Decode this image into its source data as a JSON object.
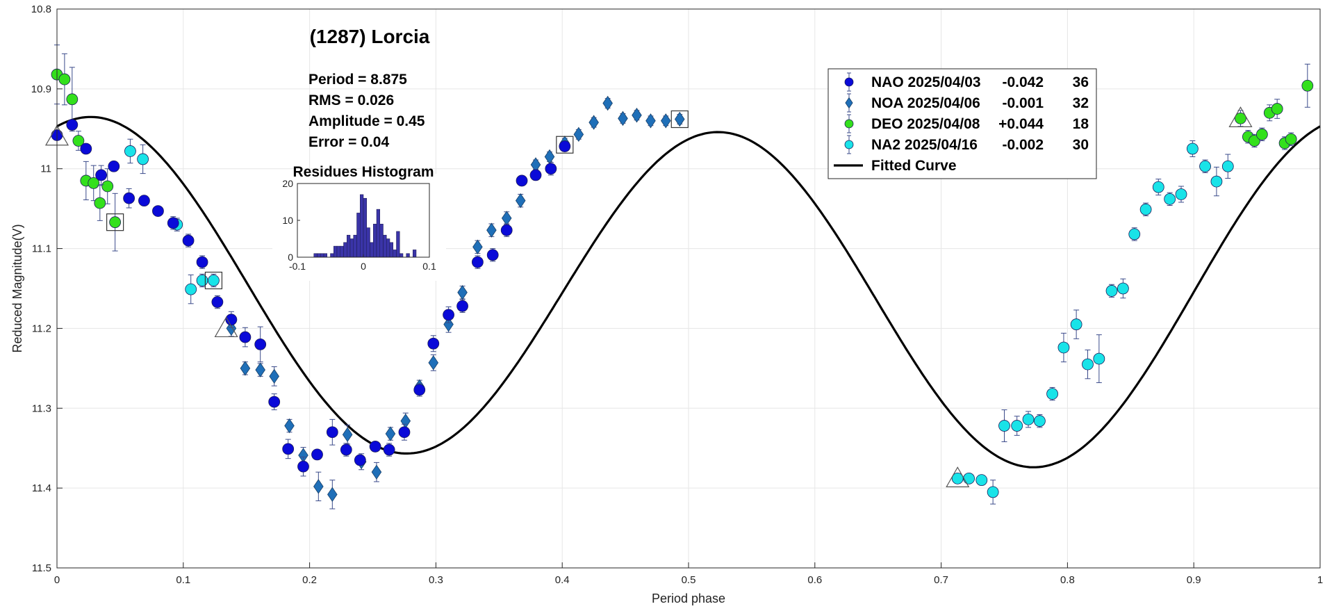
{
  "chart_data": {
    "type": "scatter",
    "title": "(1287) Lorcia",
    "xlabel": "Period phase",
    "ylabel": "Reduced Magnitude(V)",
    "xlim": [
      0,
      1
    ],
    "ylim": [
      10.8,
      11.5
    ],
    "y_inverted": true,
    "grid": true,
    "x_ticks": [
      "0",
      "0.1",
      "0.2",
      "0.3",
      "0.4",
      "0.5",
      "0.6",
      "0.7",
      "0.8",
      "0.9",
      "1"
    ],
    "y_ticks": [
      "10.8",
      "10.9",
      "11",
      "11.1",
      "11.2",
      "11.3",
      "11.4",
      "11.5"
    ],
    "stats": {
      "period": "Period =  8.875",
      "rms": "RMS = 0.026",
      "amplitude": "Amplitude = 0.45",
      "error": "Error = 0.04"
    },
    "legend": {
      "position": "top-right",
      "entries": [
        {
          "name": "NAO 2025/04/03",
          "offset": "-0.042",
          "count": "36",
          "marker": "circle",
          "color": "#0a0ad8"
        },
        {
          "name": "NOA 2025/04/06",
          "offset": "-0.001",
          "count": "32",
          "marker": "diamond",
          "color": "#1f6fb8"
        },
        {
          "name": "DEO 2025/04/08",
          "offset": "+0.044",
          "count": "18",
          "marker": "circle",
          "color": "#33e01c"
        },
        {
          "name": "NA2 2025/04/16",
          "offset": "-0.002",
          "count": "30",
          "marker": "circle",
          "color": "#19e3e8"
        },
        {
          "name": "Fitted Curve",
          "marker": "line",
          "color": "#000000"
        }
      ]
    },
    "fit": {
      "mean": 11.155,
      "c1": -0.008,
      "s1": -0.01,
      "c2": -0.2,
      "s2": -0.065
    },
    "series": [
      {
        "name": "NAO 2025/04/03",
        "marker": "circle",
        "color": "#0a0ad8",
        "points": [
          [
            0.0,
            10.958,
            0.005
          ],
          [
            0.012,
            10.945,
            0.006
          ],
          [
            0.023,
            10.975,
            0.005
          ],
          [
            0.035,
            11.008,
            0.012
          ],
          [
            0.045,
            10.997,
            0.006
          ],
          [
            0.057,
            11.037,
            0.012
          ],
          [
            0.069,
            11.04,
            0.006
          ],
          [
            0.08,
            11.053,
            0.005
          ],
          [
            0.092,
            11.068,
            0.008
          ],
          [
            0.104,
            11.09,
            0.008
          ],
          [
            0.115,
            11.117,
            0.008
          ],
          [
            0.127,
            11.167,
            0.008
          ],
          [
            0.138,
            11.189,
            0.01
          ],
          [
            0.149,
            11.211,
            0.012
          ],
          [
            0.161,
            11.22,
            0.022
          ],
          [
            0.172,
            11.292,
            0.01
          ],
          [
            0.183,
            11.351,
            0.012
          ],
          [
            0.195,
            11.373,
            0.012
          ],
          [
            0.206,
            11.358,
            0.006
          ],
          [
            0.218,
            11.33,
            0.016
          ],
          [
            0.229,
            11.352,
            0.008
          ],
          [
            0.24,
            11.365,
            0.006
          ],
          [
            0.252,
            11.348,
            0.006
          ],
          [
            0.263,
            11.352,
            0.008
          ],
          [
            0.275,
            11.33,
            0.01
          ],
          [
            0.287,
            11.277,
            0.008
          ],
          [
            0.298,
            11.219,
            0.01
          ],
          [
            0.31,
            11.183,
            0.01
          ],
          [
            0.321,
            11.172,
            0.008
          ],
          [
            0.333,
            11.117,
            0.008
          ],
          [
            0.345,
            11.108,
            0.008
          ],
          [
            0.356,
            11.077,
            0.008
          ],
          [
            0.368,
            11.015,
            0.006
          ],
          [
            0.379,
            11.008,
            0.006
          ],
          [
            0.391,
            11.0,
            0.008
          ],
          [
            0.402,
            10.972,
            0.006
          ]
        ]
      },
      {
        "name": "NOA 2025/04/06",
        "marker": "diamond",
        "color": "#1f6fb8",
        "points": [
          [
            0.138,
            11.2,
            0.01
          ],
          [
            0.149,
            11.25,
            0.008
          ],
          [
            0.161,
            11.252,
            0.008
          ],
          [
            0.172,
            11.26,
            0.012
          ],
          [
            0.184,
            11.322,
            0.008
          ],
          [
            0.195,
            11.359,
            0.01
          ],
          [
            0.207,
            11.398,
            0.018
          ],
          [
            0.218,
            11.408,
            0.018
          ],
          [
            0.23,
            11.333,
            0.012
          ],
          [
            0.241,
            11.367,
            0.01
          ],
          [
            0.253,
            11.38,
            0.012
          ],
          [
            0.264,
            11.332,
            0.008
          ],
          [
            0.276,
            11.316,
            0.01
          ],
          [
            0.287,
            11.273,
            0.008
          ],
          [
            0.298,
            11.243,
            0.01
          ],
          [
            0.31,
            11.195,
            0.01
          ],
          [
            0.321,
            11.155,
            0.008
          ],
          [
            0.333,
            11.098,
            0.008
          ],
          [
            0.344,
            11.077,
            0.008
          ],
          [
            0.356,
            11.062,
            0.008
          ],
          [
            0.367,
            11.04,
            0.008
          ],
          [
            0.379,
            10.995,
            0.006
          ],
          [
            0.39,
            10.985,
            0.006
          ],
          [
            0.402,
            10.968,
            0.006
          ],
          [
            0.413,
            10.957,
            0.006
          ],
          [
            0.425,
            10.942,
            0.006
          ],
          [
            0.436,
            10.918,
            0.006
          ],
          [
            0.448,
            10.937,
            0.006
          ],
          [
            0.459,
            10.933,
            0.006
          ],
          [
            0.47,
            10.94,
            0.006
          ],
          [
            0.482,
            10.94,
            0.006
          ],
          [
            0.493,
            10.938,
            0.006
          ]
        ]
      },
      {
        "name": "DEO 2025/04/08",
        "marker": "circle",
        "color": "#33e01c",
        "points": [
          [
            0.0,
            10.882,
            0.037
          ],
          [
            0.006,
            10.888,
            0.032
          ],
          [
            0.012,
            10.913,
            0.04
          ],
          [
            0.017,
            10.965,
            0.012
          ],
          [
            0.023,
            11.015,
            0.024
          ],
          [
            0.029,
            11.018,
            0.022
          ],
          [
            0.034,
            11.043,
            0.022
          ],
          [
            0.04,
            11.022,
            0.022
          ],
          [
            0.046,
            11.067,
            0.036
          ],
          [
            0.937,
            10.937,
            0.01
          ],
          [
            0.943,
            10.96,
            0.008
          ],
          [
            0.948,
            10.965,
            0.008
          ],
          [
            0.954,
            10.957,
            0.008
          ],
          [
            0.96,
            10.93,
            0.01
          ],
          [
            0.966,
            10.925,
            0.012
          ],
          [
            0.972,
            10.968,
            0.008
          ],
          [
            0.977,
            10.963,
            0.008
          ],
          [
            0.99,
            10.896,
            0.027
          ]
        ]
      },
      {
        "name": "NA2 2025/04/16",
        "marker": "circle",
        "color": "#19e3e8",
        "points": [
          [
            0.058,
            10.978,
            0.015
          ],
          [
            0.068,
            10.988,
            0.018
          ],
          [
            0.095,
            11.07,
            0.008
          ],
          [
            0.106,
            11.151,
            0.018
          ],
          [
            0.115,
            11.14,
            0.008
          ],
          [
            0.124,
            11.14,
            0.008
          ],
          [
            0.713,
            11.388,
            0.006
          ],
          [
            0.722,
            11.388,
            0.006
          ],
          [
            0.732,
            11.39,
            0.006
          ],
          [
            0.741,
            11.405,
            0.015
          ],
          [
            0.75,
            11.322,
            0.02
          ],
          [
            0.76,
            11.322,
            0.012
          ],
          [
            0.769,
            11.314,
            0.01
          ],
          [
            0.778,
            11.316,
            0.008
          ],
          [
            0.788,
            11.282,
            0.008
          ],
          [
            0.797,
            11.224,
            0.018
          ],
          [
            0.807,
            11.195,
            0.018
          ],
          [
            0.816,
            11.245,
            0.018
          ],
          [
            0.825,
            11.238,
            0.03
          ],
          [
            0.835,
            11.153,
            0.008
          ],
          [
            0.844,
            11.15,
            0.012
          ],
          [
            0.853,
            11.082,
            0.008
          ],
          [
            0.862,
            11.051,
            0.008
          ],
          [
            0.872,
            11.023,
            0.01
          ],
          [
            0.881,
            11.038,
            0.008
          ],
          [
            0.89,
            11.032,
            0.01
          ],
          [
            0.899,
            10.975,
            0.01
          ],
          [
            0.909,
            10.997,
            0.008
          ],
          [
            0.918,
            11.016,
            0.018
          ],
          [
            0.927,
            10.997,
            0.015
          ]
        ]
      }
    ],
    "open_markers": [
      {
        "shape": "triangle",
        "x": 0.0,
        "y": 10.96
      },
      {
        "shape": "square",
        "x": 0.046,
        "y": 11.067
      },
      {
        "shape": "square",
        "x": 0.124,
        "y": 11.14
      },
      {
        "shape": "triangle",
        "x": 0.134,
        "y": 11.2
      },
      {
        "shape": "square",
        "x": 0.402,
        "y": 10.97
      },
      {
        "shape": "square",
        "x": 0.493,
        "y": 10.938
      },
      {
        "shape": "triangle",
        "x": 0.713,
        "y": 11.388
      },
      {
        "shape": "triangle",
        "x": 0.937,
        "y": 10.937
      }
    ],
    "histogram": {
      "title": "Residues Histogram",
      "xlim": [
        -0.1,
        0.1
      ],
      "ylim": [
        0,
        20
      ],
      "x_ticks": [
        "-0.1",
        "0",
        "0.1"
      ],
      "y_ticks": [
        "0",
        "10",
        "20"
      ],
      "bin_width": 0.005,
      "bins": [
        [
          -0.075,
          1
        ],
        [
          -0.07,
          1
        ],
        [
          -0.065,
          1
        ],
        [
          -0.06,
          1
        ],
        [
          -0.05,
          1
        ],
        [
          -0.045,
          3
        ],
        [
          -0.04,
          3
        ],
        [
          -0.035,
          3
        ],
        [
          -0.03,
          4
        ],
        [
          -0.025,
          6
        ],
        [
          -0.02,
          5
        ],
        [
          -0.015,
          6
        ],
        [
          -0.01,
          12
        ],
        [
          -0.005,
          17
        ],
        [
          0.0,
          16
        ],
        [
          0.005,
          8
        ],
        [
          0.01,
          4
        ],
        [
          0.015,
          9
        ],
        [
          0.02,
          13
        ],
        [
          0.025,
          9
        ],
        [
          0.03,
          6
        ],
        [
          0.035,
          5
        ],
        [
          0.04,
          4
        ],
        [
          0.045,
          2
        ],
        [
          0.05,
          7
        ],
        [
          0.055,
          1
        ],
        [
          0.065,
          1
        ],
        [
          0.075,
          2
        ]
      ]
    }
  }
}
